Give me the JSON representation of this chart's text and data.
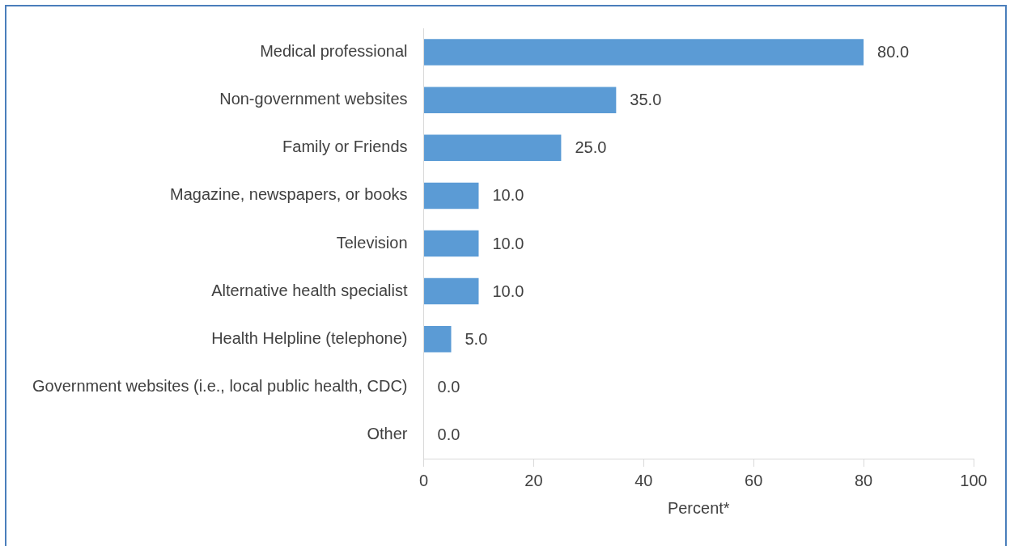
{
  "chart_data": {
    "type": "bar",
    "orientation": "horizontal",
    "xlabel": "Percent*",
    "categories": [
      "Medical professional",
      "Non-government websites",
      "Family or Friends",
      "Magazine, newspapers, or books",
      "Television",
      "Alternative health specialist",
      "Health Helpline (telephone)",
      "Government websites (i.e., local public health, CDC)",
      "Other"
    ],
    "values": [
      80.0,
      35.0,
      25.0,
      10.0,
      10.0,
      10.0,
      5.0,
      0.0,
      0.0
    ],
    "value_labels": [
      "80.0",
      "35.0",
      "25.0",
      "10.0",
      "10.0",
      "10.0",
      "5.0",
      "0.0",
      "0.0"
    ],
    "color": "#5b9bd5",
    "xlim": [
      0,
      100
    ],
    "xticks": [
      0,
      20,
      40,
      60,
      80,
      100
    ],
    "grid": false,
    "legend": false
  }
}
